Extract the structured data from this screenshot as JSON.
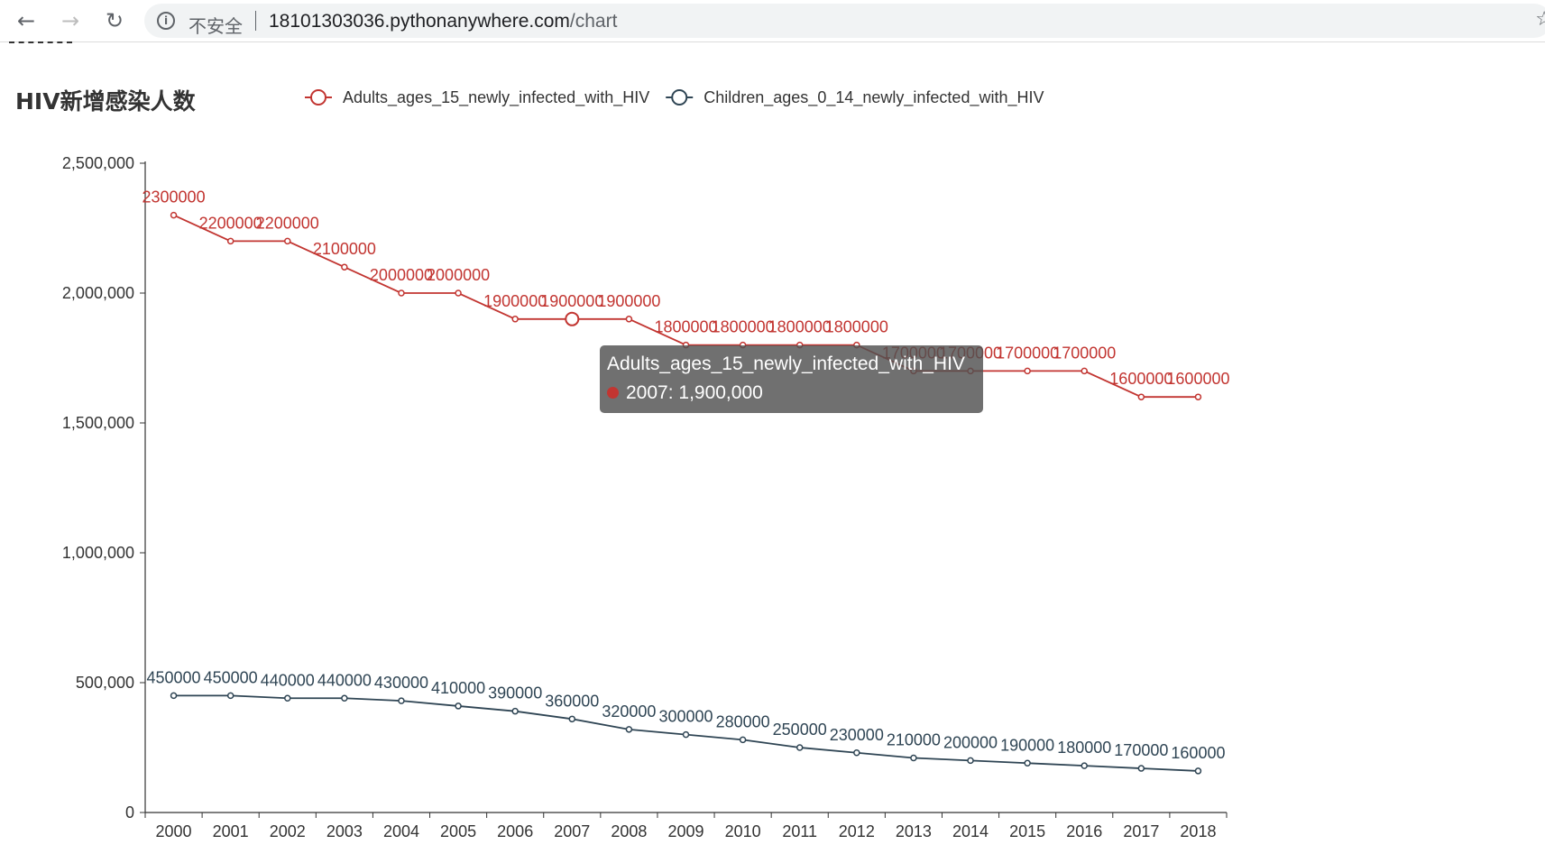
{
  "browser": {
    "security_label": "不安全",
    "url_host": "18101303036.pythonanywhere.com",
    "url_path": "/chart"
  },
  "tooltip": {
    "series": "Adults_ages_15_newly_infected_with_HIV",
    "value": "2007: 1,900,000",
    "color": "#c23531"
  },
  "chart_data": {
    "type": "line",
    "title": "HIV新增感染人数",
    "categories": [
      "2000",
      "2001",
      "2002",
      "2003",
      "2004",
      "2005",
      "2006",
      "2007",
      "2008",
      "2009",
      "2010",
      "2011",
      "2012",
      "2013",
      "2014",
      "2015",
      "2016",
      "2017",
      "2018"
    ],
    "ylim": [
      0,
      2500000
    ],
    "yticks": [
      0,
      500000,
      1000000,
      1500000,
      2000000,
      2500000
    ],
    "ytick_labels": [
      "0",
      "500,000",
      "1,000,000",
      "1,500,000",
      "2,000,000",
      "2,500,000"
    ],
    "legend_position": "top",
    "grid": false,
    "series": [
      {
        "name": "Adults_ages_15_newly_infected_with_HIV",
        "color": "#c23531",
        "values": [
          2300000,
          2200000,
          2200000,
          2100000,
          2000000,
          2000000,
          1900000,
          1900000,
          1900000,
          1800000,
          1800000,
          1800000,
          1800000,
          1700000,
          1700000,
          1700000,
          1700000,
          1600000,
          1600000
        ]
      },
      {
        "name": "Children_ages_0_14_newly_infected_with_HIV",
        "color": "#2f4554",
        "values": [
          450000,
          450000,
          440000,
          440000,
          430000,
          410000,
          390000,
          360000,
          320000,
          300000,
          280000,
          250000,
          230000,
          210000,
          200000,
          190000,
          180000,
          170000,
          160000
        ]
      }
    ],
    "highlight": {
      "series": 0,
      "index": 7
    }
  }
}
